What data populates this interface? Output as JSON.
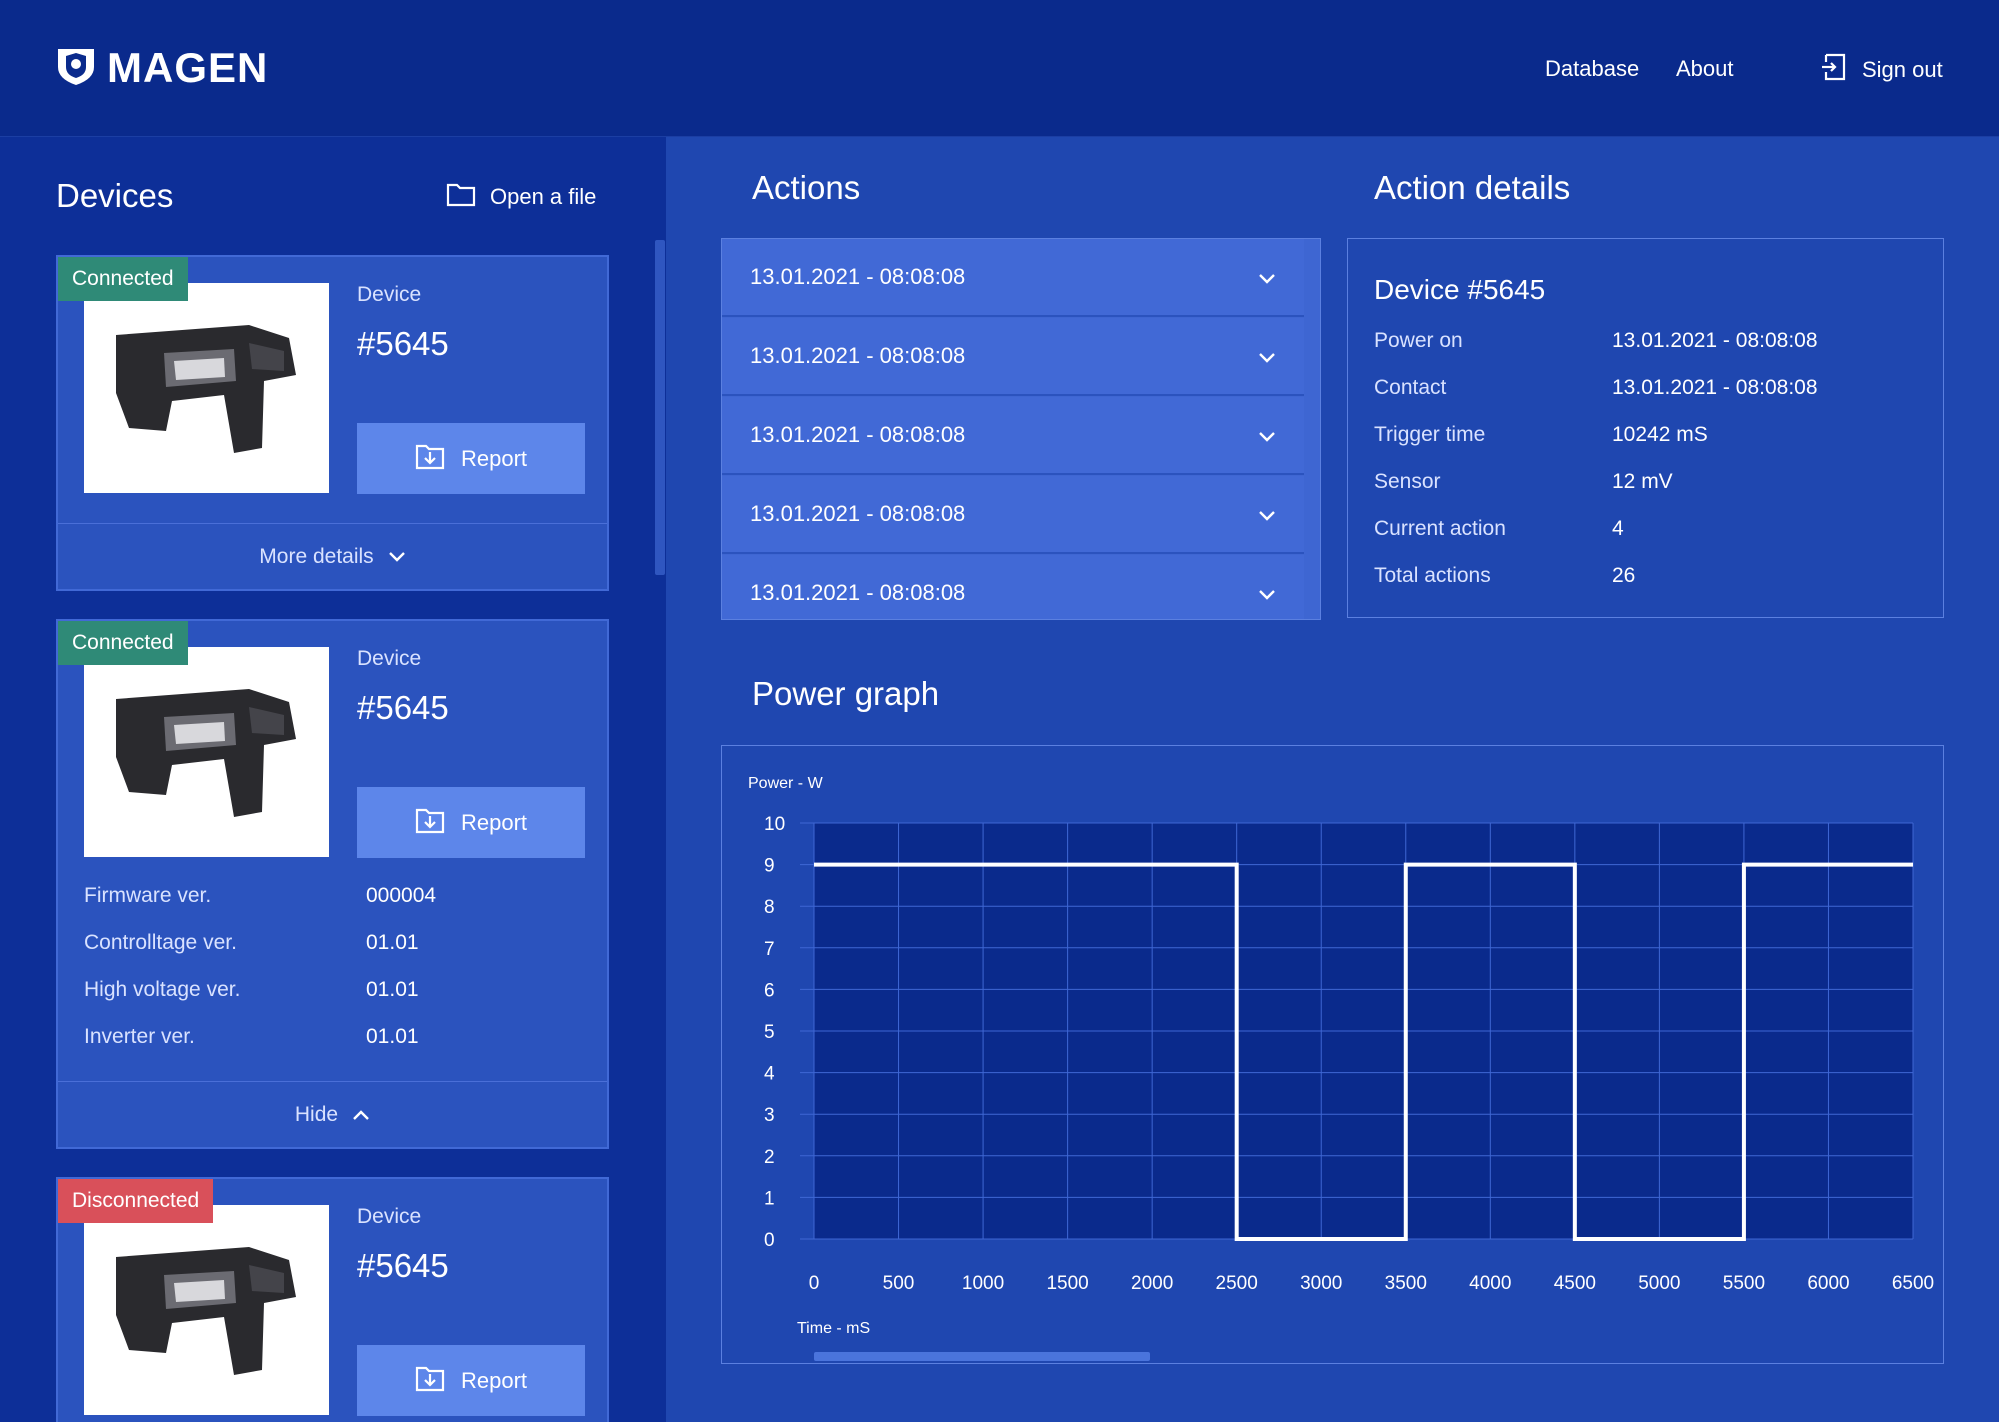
{
  "header": {
    "brand": "MAGEN",
    "nav": [
      {
        "label": "Database"
      },
      {
        "label": "About"
      }
    ],
    "sign_out_label": "Sign out"
  },
  "devices_panel": {
    "title": "Devices",
    "open_file_label": "Open a file",
    "cards": [
      {
        "status": "Connected",
        "device_label": "Device",
        "device_number": "#5645",
        "report_label": "Report",
        "footer_label": "More details"
      },
      {
        "status": "Connected",
        "device_label": "Device",
        "device_number": "#5645",
        "report_label": "Report",
        "specs": [
          {
            "key": "Firmware ver.",
            "value": "000004"
          },
          {
            "key": "Controlltage ver.",
            "value": "01.01"
          },
          {
            "key": "High voltage ver.",
            "value": "01.01"
          },
          {
            "key": "Inverter ver.",
            "value": "01.01"
          }
        ],
        "footer_label": "Hide"
      },
      {
        "status": "Disconnected",
        "device_label": "Device",
        "device_number": "#5645",
        "report_label": "Report"
      }
    ]
  },
  "actions_panel": {
    "title": "Actions",
    "items": [
      {
        "label": "13.01.2021 - 08:08:08"
      },
      {
        "label": "13.01.2021 - 08:08:08"
      },
      {
        "label": "13.01.2021 - 08:08:08"
      },
      {
        "label": "13.01.2021 - 08:08:08"
      },
      {
        "label": "13.01.2021 - 08:08:08"
      }
    ]
  },
  "action_details": {
    "title": "Action details",
    "device_title": "Device #5645",
    "rows": [
      {
        "key": "Power on",
        "value": "13.01.2021 - 08:08:08"
      },
      {
        "key": "Contact",
        "value": "13.01.2021 - 08:08:08"
      },
      {
        "key": "Trigger time",
        "value": "10242 mS"
      },
      {
        "key": "Sensor",
        "value": "12 mV"
      },
      {
        "key": "Current action",
        "value": "4"
      },
      {
        "key": "Total actions",
        "value": "26"
      }
    ]
  },
  "power_graph": {
    "title": "Power graph"
  },
  "colors": {
    "background": "#0a2a8c",
    "panel": "#1f47b0",
    "card": "#2b53be",
    "button": "#5d86ea",
    "connected": "#2f8a77",
    "disconnected": "#d9505a",
    "plot_bg": "#0a2a8c",
    "line": "#ffffff"
  },
  "icons": {
    "logo": "shield-logo-icon",
    "sign_out": "sign-out-icon",
    "folder": "folder-icon",
    "report": "download-report-icon",
    "chevron_down": "chevron-down-icon",
    "chevron_up": "chevron-up-icon"
  },
  "chart_data": {
    "type": "line",
    "title": "",
    "xlabel": "Time - mS",
    "ylabel": "Power - W",
    "xlim": [
      0,
      6500
    ],
    "ylim": [
      0,
      10
    ],
    "x_ticks": [
      0,
      500,
      1000,
      1500,
      2000,
      2500,
      3000,
      3500,
      4000,
      4500,
      5000,
      5500,
      6000,
      6500
    ],
    "y_ticks": [
      0,
      1,
      2,
      3,
      4,
      5,
      6,
      7,
      8,
      9,
      10
    ],
    "grid": true,
    "series": [
      {
        "x": [
          0,
          2500,
          2500,
          3500,
          3500,
          4500,
          4500,
          5500,
          5500,
          6500
        ],
        "y": [
          9,
          9,
          0,
          0,
          9,
          9,
          0,
          0,
          9,
          9
        ]
      }
    ]
  }
}
